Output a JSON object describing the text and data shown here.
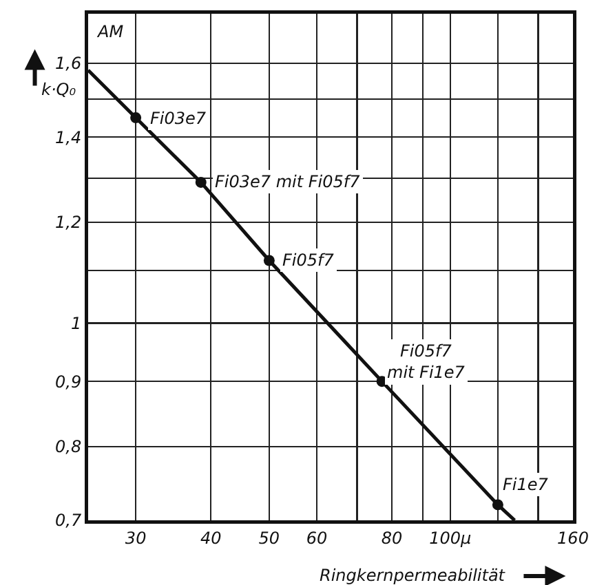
{
  "chart_data": {
    "type": "line",
    "xlabel": "Ringkernpermeabilität",
    "ylabel": "k·Q₀",
    "log": "xy",
    "grid": true,
    "line_style": "solid",
    "xlim": [
      25,
      160
    ],
    "ylim": [
      0.7,
      1.75
    ],
    "xticks": [
      30,
      40,
      50,
      60,
      {
        "value": 70,
        "label": null
      },
      80,
      {
        "value": 90,
        "label": null
      },
      {
        "value": 100,
        "label": "100μ"
      },
      {
        "value": 120,
        "label": null
      },
      {
        "value": 140,
        "label": null
      },
      160
    ],
    "yticks": [
      {
        "value": 0.7,
        "label": "0,7"
      },
      {
        "value": 0.8,
        "label": "0,8"
      },
      {
        "value": 0.9,
        "label": "0,9"
      },
      1,
      {
        "value": 1.1,
        "label": null
      },
      {
        "value": 1.2,
        "label": "1,2"
      },
      {
        "value": 1.3,
        "label": null
      },
      {
        "value": 1.4,
        "label": "1,4"
      },
      {
        "value": 1.5,
        "label": null
      },
      {
        "value": 1.6,
        "label": "1,6"
      }
    ],
    "series": [
      {
        "color": "#111111",
        "marker": "none",
        "x": [
          25,
          30,
          38.5,
          50,
          77,
          120,
          128
        ],
        "values": [
          1.58,
          1.45,
          1.29,
          1.12,
          0.9,
          0.72,
          0.7
        ]
      },
      {
        "type": "scatter",
        "marker": "circle",
        "color": "#111111",
        "x": [
          30,
          38.5,
          50,
          77,
          120
        ],
        "values": [
          1.45,
          1.29,
          1.12,
          0.9,
          0.72
        ]
      }
    ],
    "annotations": [
      "AM",
      {
        "text": "Fi03e7",
        "x": 30,
        "y": 1.45
      },
      {
        "text": "Fi03e7 mit Fi05f7",
        "x": 38.5,
        "y": 1.29
      },
      {
        "text": "Fi05f7",
        "x": 50,
        "y": 1.12
      },
      {
        "text": "Fi05f7\nmit Fi1e7",
        "x": 77,
        "y": 0.9
      },
      {
        "text": "Fi1e7",
        "x": 120,
        "y": 0.72
      }
    ]
  }
}
